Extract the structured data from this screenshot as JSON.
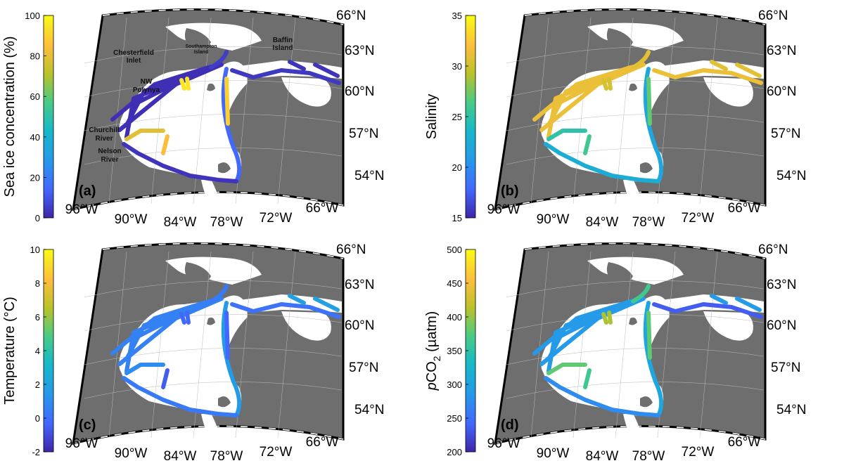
{
  "panels": [
    {
      "id": "a",
      "label": "(a)",
      "colorbar_title": "Sea ice concentration (%)",
      "colorbar_ticks": [
        "100",
        "80",
        "60",
        "40",
        "20",
        "0"
      ],
      "place_names": [
        "Chesterfield",
        "Inlet",
        "Southampton",
        "Island",
        "Baffin",
        "Island",
        "NW",
        "Polynya",
        "Churchill",
        "River",
        "Nelson",
        "River"
      ],
      "lat_labels": [
        "66°N",
        "63°N",
        "60°N",
        "57°N",
        "54°N"
      ],
      "lon_labels": [
        "96°W",
        "90°W",
        "84°W",
        "78°W",
        "72°W",
        "66°W"
      ]
    },
    {
      "id": "b",
      "label": "(b)",
      "colorbar_title": "Salinity",
      "colorbar_ticks": [
        "35",
        "30",
        "25",
        "20",
        "15"
      ],
      "lat_labels": [
        "66°N",
        "63°N",
        "60°N",
        "57°N",
        "54°N"
      ],
      "lon_labels": [
        "96°W",
        "90°W",
        "84°W",
        "78°W",
        "72°W",
        "66°W"
      ]
    },
    {
      "id": "c",
      "label": "(c)",
      "colorbar_title": "Temperature (°C)",
      "colorbar_ticks": [
        "10",
        "8",
        "6",
        "4",
        "2",
        "0",
        "-2"
      ],
      "lat_labels": [
        "66°N",
        "63°N",
        "60°N",
        "57°N",
        "54°N"
      ],
      "lon_labels": [
        "96°W",
        "90°W",
        "84°W",
        "78°W",
        "72°W",
        "66°W"
      ]
    },
    {
      "id": "d",
      "label": "(d)",
      "colorbar_title_main": "pCO",
      "colorbar_title_sub": "2",
      "colorbar_title_unit": " (µatm)",
      "colorbar_ticks": [
        "500",
        "450",
        "400",
        "350",
        "300",
        "250",
        "200"
      ],
      "lat_labels": [
        "66°N",
        "63°N",
        "60°N",
        "57°N",
        "54°N"
      ],
      "lon_labels": [
        "96°W",
        "90°W",
        "84°W",
        "78°W",
        "72°W",
        "66°W"
      ]
    }
  ],
  "colors": {
    "land": "#6e6e6e",
    "sea": "#ffffff",
    "colormap": [
      "#3e26a8",
      "#4367fd",
      "#2797eb",
      "#16b8c9",
      "#48cb86",
      "#b9c22a",
      "#fdbe3d",
      "#f9fb14"
    ]
  },
  "track_levels": {
    "a": {
      "west_lines": 0.02,
      "south_coast": 0.03,
      "east_coast": 0.15,
      "north_arc": 0.05,
      "hudson_strait": 0.04,
      "baffin": 0.03,
      "center_n": 0.9,
      "center_s": 0.85,
      "churchill_spur": 0.8,
      "nw_patch": 0.95
    },
    "b": {
      "west_lines": 0.82,
      "south_coast": 0.38,
      "east_coast": 0.35,
      "north_arc": 0.8,
      "hudson_strait": 0.82,
      "baffin": 0.8,
      "center_n": 0.6,
      "center_s": 0.55,
      "churchill_spur": 0.5,
      "nw_patch": 0.78
    },
    "c": {
      "west_lines": 0.22,
      "south_coast": 0.2,
      "east_coast": 0.3,
      "north_arc": 0.2,
      "hudson_strait": 0.18,
      "baffin": 0.32,
      "center_n": 0.15,
      "center_s": 0.12,
      "churchill_spur": 0.25,
      "nw_patch": 0.15
    },
    "d": {
      "west_lines": 0.3,
      "south_coast": 0.25,
      "east_coast": 0.35,
      "north_arc": 0.55,
      "hudson_strait": 0.12,
      "baffin": 0.3,
      "center_n": 0.6,
      "center_s": 0.55,
      "churchill_spur": 0.6,
      "nw_patch": 0.7
    }
  }
}
